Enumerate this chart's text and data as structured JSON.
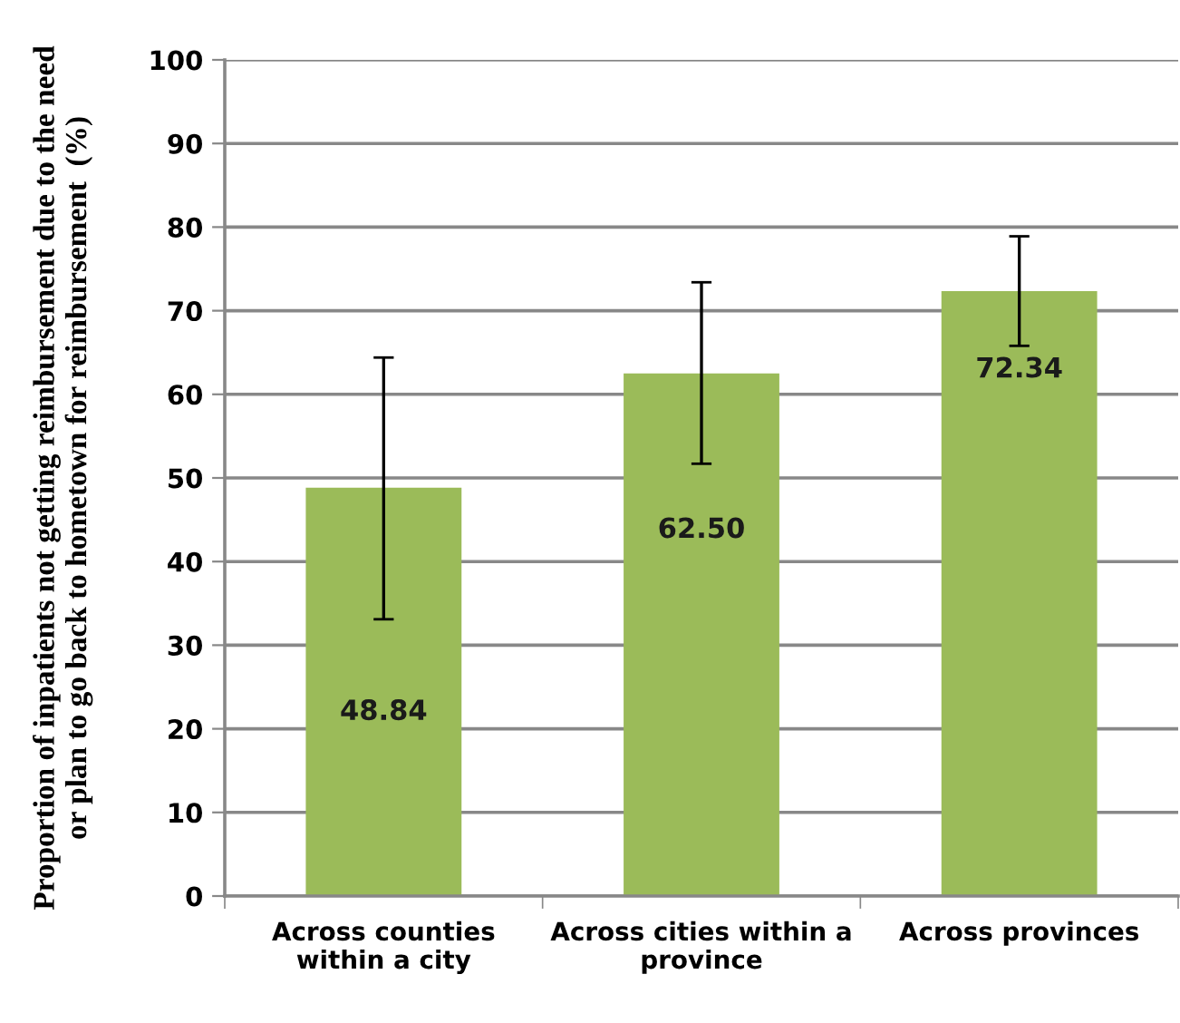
{
  "chart_data": {
    "type": "bar",
    "ylabel": "Proportion of inpatients not getting reimbursement due to the need\nor plan to go back to hometown for reimbursement  (%)",
    "categories": [
      "Across counties\nwithin a city",
      "Across cities within a\nprovince",
      "Across provinces"
    ],
    "values": [
      48.84,
      62.5,
      72.34
    ],
    "value_labels": [
      "48.84",
      "62.50",
      "72.34"
    ],
    "errors": [
      [
        33.1,
        64.4
      ],
      [
        51.7,
        73.4
      ],
      [
        65.8,
        78.9
      ]
    ],
    "color": "#9bbb59",
    "ylim": [
      0,
      100
    ],
    "yticks": [
      0,
      10,
      20,
      30,
      40,
      50,
      60,
      70,
      80,
      90,
      100
    ],
    "grid": "y"
  }
}
